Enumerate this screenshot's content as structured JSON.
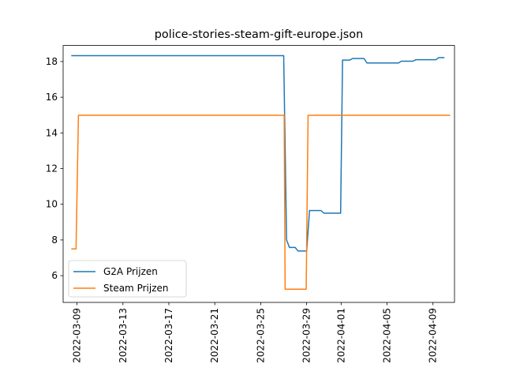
{
  "chart_data": {
    "type": "line",
    "title": "police-stories-steam-gift-europe.json",
    "xlabel": "",
    "ylabel": "",
    "x_type": "date",
    "xlim": [
      "2022-03-07T19:00",
      "2022-04-10T21:00"
    ],
    "ylim": [
      4.5,
      18.9
    ],
    "x_ticks": [
      "2022-03-09",
      "2022-03-13",
      "2022-03-17",
      "2022-03-21",
      "2022-03-25",
      "2022-03-29",
      "2022-04-01",
      "2022-04-05",
      "2022-04-09"
    ],
    "y_ticks": [
      6,
      8,
      10,
      12,
      14,
      16,
      18
    ],
    "legend": {
      "position": "lower-left"
    },
    "grid": false,
    "series": [
      {
        "name": "G2A Prijzen",
        "color": "#1f77b4",
        "points": [
          [
            "2022-03-08T12:00",
            18.33
          ],
          [
            "2022-03-27T00:00",
            18.33
          ],
          [
            "2022-03-27T06:00",
            8.0
          ],
          [
            "2022-03-27T12:00",
            7.58
          ],
          [
            "2022-03-28T00:00",
            7.58
          ],
          [
            "2022-03-28T06:00",
            7.38
          ],
          [
            "2022-03-29T00:00",
            7.38
          ],
          [
            "2022-03-29T06:00",
            9.65
          ],
          [
            "2022-03-30T06:00",
            9.65
          ],
          [
            "2022-03-30T12:00",
            9.5
          ],
          [
            "2022-03-31T23:00",
            9.5
          ],
          [
            "2022-04-01T03:00",
            18.08
          ],
          [
            "2022-04-01T18:00",
            18.08
          ],
          [
            "2022-04-02T00:00",
            18.17
          ],
          [
            "2022-04-03T00:00",
            18.17
          ],
          [
            "2022-04-03T06:00",
            17.92
          ],
          [
            "2022-04-06T00:00",
            17.92
          ],
          [
            "2022-04-06T06:00",
            18.02
          ],
          [
            "2022-04-07T06:00",
            18.02
          ],
          [
            "2022-04-07T12:00",
            18.1
          ],
          [
            "2022-04-09T06:00",
            18.1
          ],
          [
            "2022-04-09T12:00",
            18.22
          ],
          [
            "2022-04-10T00:00",
            18.22
          ]
        ]
      },
      {
        "name": "Steam Prijzen",
        "color": "#ff7f0e",
        "points": [
          [
            "2022-03-08T12:00",
            7.5
          ],
          [
            "2022-03-08T22:00",
            7.5
          ],
          [
            "2022-03-09T03:00",
            14.99
          ],
          [
            "2022-03-27T01:00",
            14.99
          ],
          [
            "2022-03-27T03:00",
            5.24
          ],
          [
            "2022-03-28T23:00",
            5.24
          ],
          [
            "2022-03-29T03:00",
            14.99
          ],
          [
            "2022-04-10T12:00",
            14.99
          ]
        ]
      }
    ]
  }
}
